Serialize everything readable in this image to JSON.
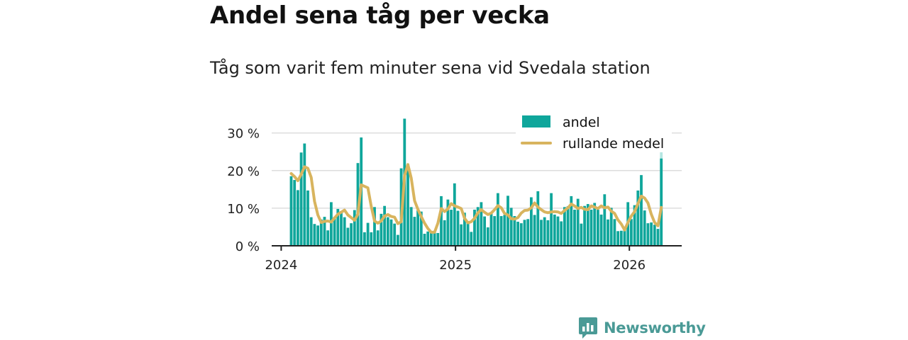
{
  "header": {
    "title": "Andel sena tåg per vecka",
    "subtitle": "Tåg som varit fem minuter sena vid Svedala station"
  },
  "brand": {
    "name": "Newsworthy",
    "icon": "newsworthy-logo-icon",
    "color": "#4a9a96"
  },
  "colors": {
    "bar": "#0fa69b",
    "bar_last": "#b5e6e2",
    "line": "#d8b45e",
    "axis": "#222222",
    "grid": "#dddddd"
  },
  "chart_data": {
    "type": "bar",
    "title": "Andel sena tåg per vecka",
    "subtitle": "Tåg som varit fem minuter sena vid Svedala station",
    "x_start": "2024-01-22",
    "x_ticks": [
      "2024",
      "2025",
      "2026"
    ],
    "y_ticks": [
      "0 %",
      "10 %",
      "20 %",
      "30 %"
    ],
    "ylim": [
      0,
      35
    ],
    "grid": true,
    "legend_position": "top-right",
    "series": [
      {
        "name": "andel",
        "type": "bar",
        "values": [
          18.5,
          17.5,
          14.8,
          24.8,
          27.2,
          14.7,
          7.6,
          5.8,
          5.4,
          7.0,
          7.7,
          4.1,
          11.6,
          7.7,
          9.8,
          9.2,
          7.6,
          4.8,
          6.0,
          9.5,
          22.0,
          28.8,
          3.6,
          6.1,
          3.6,
          10.3,
          4.1,
          8.5,
          10.6,
          7.6,
          7.0,
          5.9,
          2.9,
          20.6,
          33.8,
          21.8,
          10.3,
          7.7,
          9.4,
          9.1,
          3.2,
          3.8,
          3.4,
          3.6,
          3.4,
          13.2,
          6.8,
          12.3,
          9.6,
          16.6,
          9.3,
          5.7,
          8.8,
          6.1,
          3.7,
          9.6,
          10.3,
          11.6,
          7.8,
          4.9,
          8.9,
          7.9,
          14.0,
          7.9,
          8.2,
          13.3,
          10.1,
          7.9,
          6.4,
          6.0,
          6.9,
          7.1,
          12.9,
          8.2,
          14.5,
          6.9,
          7.6,
          6.8,
          14.0,
          8.3,
          7.8,
          6.5,
          10.3,
          10.5,
          13.2,
          9.6,
          12.5,
          5.9,
          10.6,
          11.1,
          9.6,
          11.4,
          9.6,
          8.3,
          13.7,
          7.0,
          10.1,
          7.1,
          3.9,
          4.0,
          4.8,
          11.6,
          7.1,
          10.8,
          14.7,
          18.8,
          9.4,
          6.0,
          6.2,
          5.6,
          4.5,
          25.0
        ]
      },
      {
        "name": "rullande medel",
        "type": "line",
        "values": [
          19.2,
          18.4,
          17.3,
          19.0,
          21.0,
          20.6,
          18.2,
          11.8,
          8.2,
          6.2,
          6.5,
          6.6,
          6.3,
          7.4,
          8.4,
          8.9,
          9.5,
          8.2,
          7.5,
          6.8,
          8.4,
          16.2,
          15.8,
          15.4,
          10.5,
          6.6,
          6.0,
          6.6,
          7.9,
          8.3,
          7.8,
          7.6,
          5.9,
          6.4,
          18.6,
          21.6,
          18.0,
          12.0,
          9.7,
          7.8,
          6.0,
          4.6,
          3.6,
          3.6,
          6.0,
          9.9,
          9.1,
          9.8,
          11.2,
          10.6,
          10.3,
          9.9,
          7.3,
          6.1,
          6.4,
          7.3,
          8.8,
          9.6,
          8.9,
          8.3,
          8.7,
          9.6,
          10.7,
          10.1,
          8.6,
          8.2,
          7.2,
          7.1,
          7.5,
          8.7,
          9.4,
          9.5,
          10.1,
          11.4,
          10.3,
          9.6,
          9.0,
          8.8,
          9.0,
          9.1,
          9.0,
          8.6,
          9.4,
          10.1,
          11.1,
          10.6,
          9.9,
          10.2,
          9.7,
          9.6,
          10.6,
          10.3,
          9.9,
          10.6,
          10.1,
          10.3,
          9.2,
          8.6,
          6.9,
          5.8,
          4.2,
          6.2,
          7.9,
          9.1,
          11.2,
          13.2,
          12.7,
          11.4,
          8.4,
          6.2,
          5.3,
          10.2
        ]
      }
    ]
  }
}
